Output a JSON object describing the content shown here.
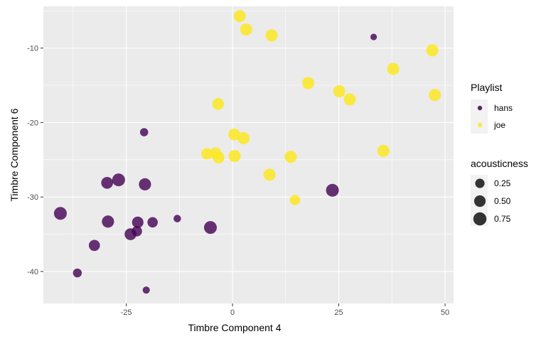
{
  "chart_data": {
    "type": "scatter",
    "xlabel": "Timbre Component 4",
    "ylabel": "Timbre Component 6",
    "xlim": [
      -44.5,
      52
    ],
    "ylim": [
      -44.3,
      -4.4
    ],
    "xticks": [
      -25,
      0,
      25,
      50
    ],
    "yticks": [
      -10,
      -20,
      -30,
      -40
    ],
    "grid": true,
    "legend": {
      "color_title": "Playlist",
      "color_entries": [
        {
          "name": "hans",
          "color": "#440154"
        },
        {
          "name": "joe",
          "color": "#FDE725"
        }
      ],
      "size_title": "acousticness",
      "size_entries": [
        {
          "label": "0.25",
          "value": 0.25
        },
        {
          "label": "0.50",
          "value": 0.5
        },
        {
          "label": "0.75",
          "value": 0.75
        }
      ],
      "placement": "right"
    },
    "series": [
      {
        "name": "hans",
        "color": "#440154",
        "points": [
          {
            "x": -40.5,
            "y": -32.2,
            "acousticness": 0.7
          },
          {
            "x": -36.5,
            "y": -40.2,
            "acousticness": 0.2
          },
          {
            "x": -32.5,
            "y": -36.5,
            "acousticness": 0.45
          },
          {
            "x": -29.5,
            "y": -28.1,
            "acousticness": 0.55
          },
          {
            "x": -29.3,
            "y": -33.3,
            "acousticness": 0.6
          },
          {
            "x": -26.8,
            "y": -27.7,
            "acousticness": 0.7
          },
          {
            "x": -24.0,
            "y": -35.0,
            "acousticness": 0.55
          },
          {
            "x": -22.5,
            "y": -34.6,
            "acousticness": 0.35
          },
          {
            "x": -22.3,
            "y": -33.4,
            "acousticness": 0.5
          },
          {
            "x": -20.8,
            "y": -21.3,
            "acousticness": 0.15
          },
          {
            "x": -20.6,
            "y": -28.3,
            "acousticness": 0.6
          },
          {
            "x": -20.3,
            "y": -42.5,
            "acousticness": 0.08
          },
          {
            "x": -18.8,
            "y": -33.4,
            "acousticness": 0.35
          },
          {
            "x": -13.0,
            "y": -32.9,
            "acousticness": 0.1
          },
          {
            "x": -5.2,
            "y": -34.1,
            "acousticness": 0.7
          },
          {
            "x": 23.5,
            "y": -29.1,
            "acousticness": 0.7
          },
          {
            "x": 33.2,
            "y": -8.5,
            "acousticness": 0.05
          }
        ]
      },
      {
        "name": "joe",
        "color": "#FDE725",
        "points": [
          {
            "x": 1.7,
            "y": -5.7,
            "acousticness": 0.6
          },
          {
            "x": 3.2,
            "y": -7.5,
            "acousticness": 0.6
          },
          {
            "x": 9.2,
            "y": -8.3,
            "acousticness": 0.6
          },
          {
            "x": 47.0,
            "y": -10.3,
            "acousticness": 0.6
          },
          {
            "x": 37.8,
            "y": -12.8,
            "acousticness": 0.6
          },
          {
            "x": 17.8,
            "y": -14.7,
            "acousticness": 0.6
          },
          {
            "x": 25.1,
            "y": -15.8,
            "acousticness": 0.6
          },
          {
            "x": 27.6,
            "y": -16.9,
            "acousticness": 0.6
          },
          {
            "x": 47.6,
            "y": -16.3,
            "acousticness": 0.6
          },
          {
            "x": -3.4,
            "y": -17.5,
            "acousticness": 0.55
          },
          {
            "x": 0.4,
            "y": -21.6,
            "acousticness": 0.55
          },
          {
            "x": 2.6,
            "y": -22.1,
            "acousticness": 0.6
          },
          {
            "x": -6.0,
            "y": -24.2,
            "acousticness": 0.5
          },
          {
            "x": -4.0,
            "y": -24.1,
            "acousticness": 0.5
          },
          {
            "x": -3.3,
            "y": -24.7,
            "acousticness": 0.55
          },
          {
            "x": 0.5,
            "y": -24.5,
            "acousticness": 0.6
          },
          {
            "x": 13.7,
            "y": -24.6,
            "acousticness": 0.6
          },
          {
            "x": 35.5,
            "y": -23.8,
            "acousticness": 0.6
          },
          {
            "x": 8.7,
            "y": -27.0,
            "acousticness": 0.6
          },
          {
            "x": 14.7,
            "y": -30.4,
            "acousticness": 0.35
          }
        ]
      }
    ]
  }
}
